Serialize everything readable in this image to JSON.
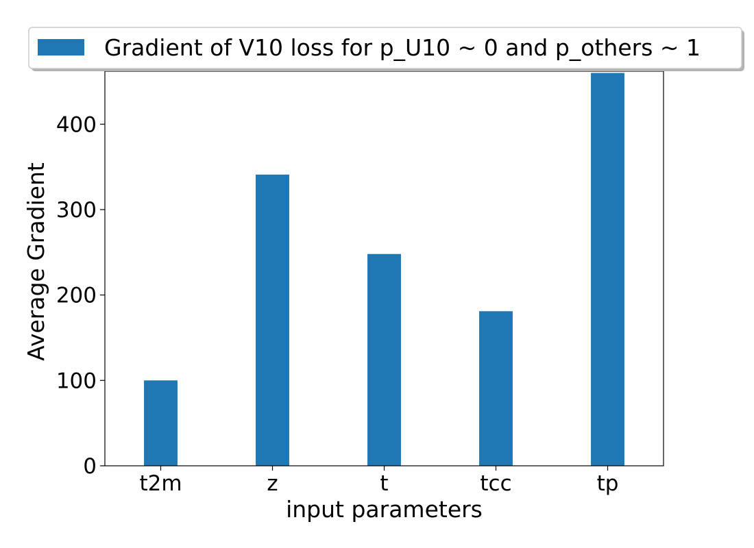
{
  "chart_data": {
    "type": "bar",
    "categories": [
      "t2m",
      "z",
      "t",
      "tcc",
      "tp"
    ],
    "series": [
      {
        "name": "Gradient of V10 loss for p_U10 ~ 0 and p_others ~ 1",
        "values": [
          100,
          341,
          248,
          181,
          460
        ],
        "color": "#1f77b4"
      }
    ],
    "title": "",
    "xlabel": "input parameters",
    "ylabel": "Average Gradient",
    "ylim": [
      0,
      462
    ],
    "yticks": [
      0,
      100,
      200,
      300,
      400
    ],
    "grid": false,
    "legend_position": "top"
  }
}
